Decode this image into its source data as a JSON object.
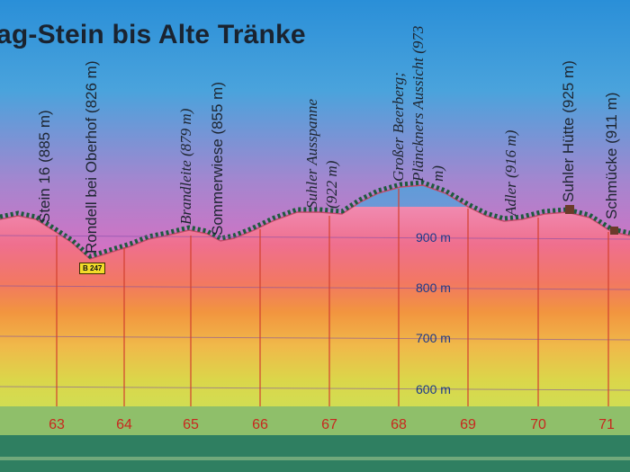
{
  "sign": {
    "title": "ag-Stein bis Alte Tränke",
    "road_badge": "B 247",
    "elevation_marks": [
      "900 m",
      "800 m",
      "700 m",
      "600 m"
    ],
    "km_marks": [
      "63",
      "64",
      "65",
      "66",
      "67",
      "68",
      "69",
      "70",
      "71"
    ],
    "places": [
      {
        "name": "Stein 16 (885 m)"
      },
      {
        "name": "Rondell bei Oberhof (826 m)"
      },
      {
        "name": "Brandleite (879 m)"
      },
      {
        "name": "Sommerwiese (855 m)"
      },
      {
        "name": "Suhler Ausspanne (922 m)"
      },
      {
        "name": "Großer Beerberg; Plänckners Aussicht (973 m)"
      },
      {
        "name": "Adler (916 m)"
      },
      {
        "name": "Suhler Hütte (925 m)"
      },
      {
        "name": "Schmücke (911 m)"
      }
    ],
    "colors": {
      "sky_top": "#2a8fd8",
      "sky_bottom": "#d96fc1",
      "profile_fill": "#ef7fa0",
      "band_orange": "#f09a3e",
      "band_yellow": "#d9e04a",
      "frame_green": "#2f7f61",
      "km_red": "#c8281f",
      "elev_blue": "#1b3a8a"
    }
  }
}
